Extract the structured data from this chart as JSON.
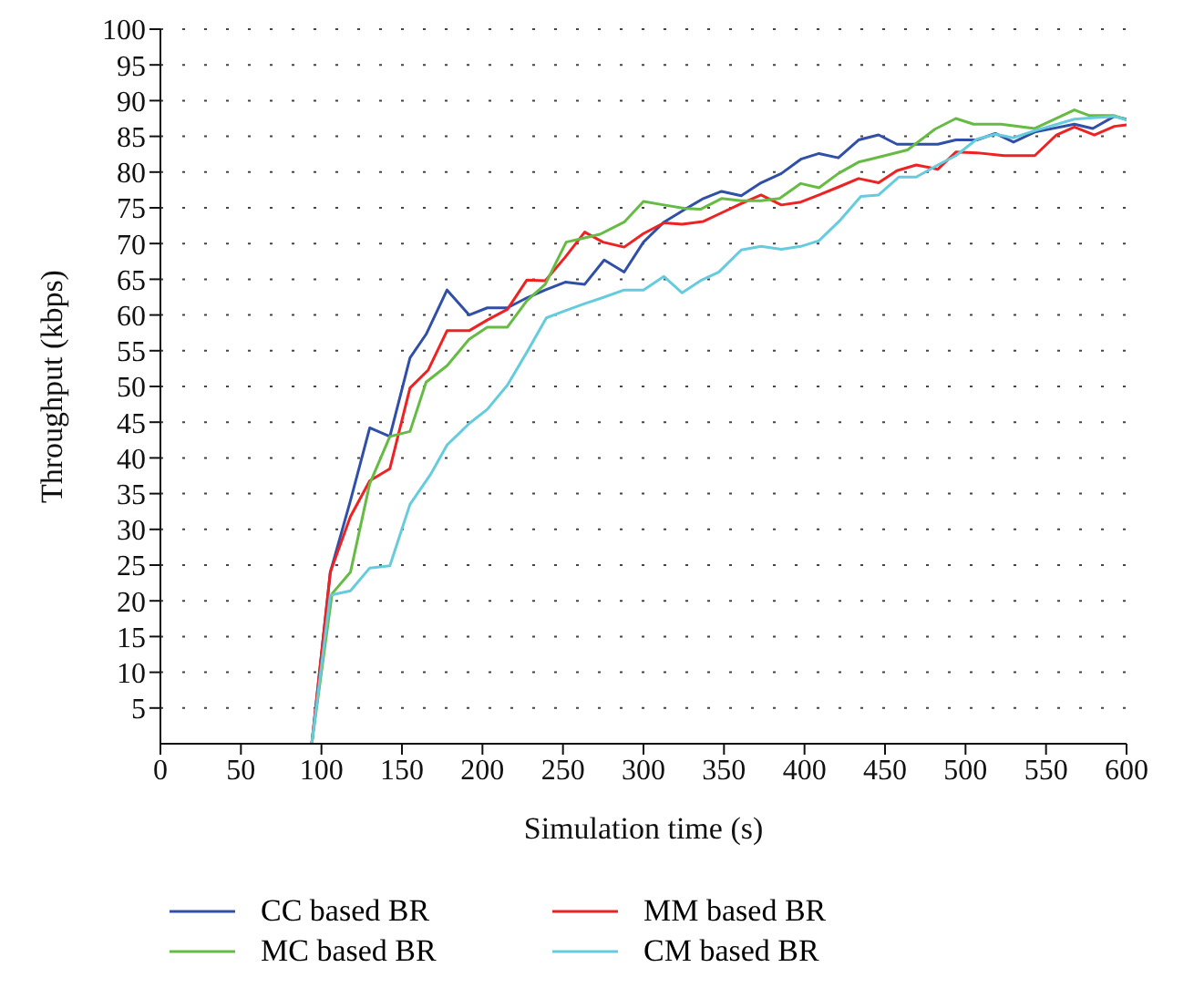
{
  "chart_data": {
    "type": "line",
    "xlabel": "Simulation time (s)",
    "ylabel": "Throughput (kbps)",
    "xlim": [
      0,
      600
    ],
    "xticks": [
      0,
      50,
      100,
      150,
      200,
      250,
      300,
      350,
      400,
      450,
      500,
      550,
      600
    ],
    "ylim": [
      0,
      100
    ],
    "yticks": [
      5,
      10,
      15,
      20,
      25,
      30,
      35,
      40,
      45,
      50,
      55,
      60,
      65,
      70,
      75,
      80,
      85,
      90,
      95,
      100
    ],
    "grid": "y",
    "legend": "bottom",
    "marker": "none",
    "line_style": "solid",
    "series": [
      {
        "name": "CC based BR",
        "color": "#3050a8",
        "x": [
          94,
          105.5,
          118,
          130,
          142.5,
          155,
          165,
          178,
          191.7,
          203,
          215.5,
          227.6,
          239,
          251.4,
          263.5,
          275.6,
          288,
          300,
          312.7,
          325.9,
          337.2,
          348.5,
          360.7,
          373,
          385.6,
          397.7,
          409,
          421,
          433.6,
          446,
          457.4,
          482.8,
          494,
          507,
          518.5,
          529.8,
          543,
          567.6,
          579,
          592.4,
          600
        ],
        "values": [
          0,
          24,
          34,
          44.2,
          43,
          54,
          57.3,
          63.5,
          60,
          61,
          61,
          62.4,
          63.5,
          64.6,
          64.3,
          67.7,
          66,
          70.2,
          73,
          74.8,
          76.3,
          77.3,
          76.7,
          78.5,
          79.8,
          81.8,
          82.6,
          82,
          84.5,
          85.2,
          83.9,
          83.9,
          84.5,
          84.5,
          85.4,
          84.2,
          85.6,
          86.7,
          86.1,
          87.8,
          87.4
        ]
      },
      {
        "name": "MM based BR",
        "color": "#ee2222",
        "x": [
          94,
          105.5,
          118,
          130,
          142.5,
          155,
          166.3,
          178,
          191.7,
          203,
          215.5,
          227.6,
          239,
          251.4,
          263.5,
          274.8,
          288,
          300,
          312.7,
          324,
          337.2,
          348.5,
          360.7,
          373,
          385.6,
          397.7,
          409,
          421,
          433.6,
          446,
          457.4,
          469.4,
          482.8,
          494,
          507,
          524,
          543,
          556.5,
          567.6,
          580,
          592.4,
          600
        ],
        "values": [
          0,
          24,
          31.8,
          36.8,
          38.5,
          49.8,
          52.3,
          57.8,
          57.8,
          59.3,
          60.8,
          64.9,
          64.8,
          68.1,
          71.6,
          70.2,
          69.5,
          71.4,
          72.9,
          72.7,
          73.1,
          74.3,
          75.6,
          76.8,
          75.4,
          75.8,
          76.8,
          77.9,
          79.1,
          78.5,
          80.2,
          81,
          80.4,
          82.8,
          82.7,
          82.3,
          82.3,
          85.2,
          86.3,
          85.2,
          86.4,
          86.6
        ]
      },
      {
        "name": "MC based BR",
        "color": "#66bb44",
        "x": [
          94,
          106.6,
          118,
          130,
          142.5,
          155,
          165,
          178,
          191.7,
          203,
          215.5,
          227.6,
          239,
          252,
          263.5,
          273,
          288,
          300,
          312.7,
          325.9,
          335.4,
          348.5,
          360.7,
          373,
          384.5,
          397.7,
          409,
          421,
          433.6,
          440.8,
          464,
          481,
          494,
          505,
          522,
          543,
          567.6,
          577,
          592.4,
          600
        ],
        "values": [
          0,
          21,
          24,
          36.4,
          43,
          43.7,
          50.6,
          52.9,
          56.6,
          58.3,
          58.3,
          62,
          64.3,
          70.2,
          70.8,
          71.3,
          73,
          75.9,
          75.4,
          74.9,
          74.8,
          76.3,
          76,
          76,
          76.3,
          78.4,
          77.8,
          79.8,
          81.4,
          81.8,
          83.1,
          86,
          87.5,
          86.7,
          86.7,
          86.1,
          88.7,
          87.9,
          87.9,
          87.3
        ]
      },
      {
        "name": "CM based BR",
        "color": "#66ccdd",
        "x": [
          94,
          105.5,
          118,
          130,
          142.5,
          155,
          167.8,
          178,
          191.7,
          203,
          215.5,
          227.6,
          239.7,
          251.4,
          263.5,
          275.6,
          288,
          300,
          312.7,
          324,
          335.4,
          346.7,
          360.7,
          373,
          385.6,
          397.7,
          409,
          422.3,
          435,
          446,
          458.5,
          469.4,
          482.8,
          494,
          507,
          518.5,
          529.8,
          543,
          567.6,
          579,
          592.4,
          600
        ],
        "values": [
          0,
          20.8,
          21.4,
          24.6,
          24.9,
          33.5,
          37.7,
          41.8,
          44.8,
          46.8,
          50.2,
          54.8,
          59.6,
          60.6,
          61.6,
          62.5,
          63.5,
          63.5,
          65.4,
          63.1,
          64.8,
          66,
          69.1,
          69.6,
          69.2,
          69.6,
          70.4,
          73.3,
          76.6,
          76.8,
          79.3,
          79.3,
          81,
          82.3,
          84.6,
          85.3,
          84.8,
          85.8,
          87.4,
          87.6,
          87.8,
          87.3
        ]
      }
    ]
  }
}
